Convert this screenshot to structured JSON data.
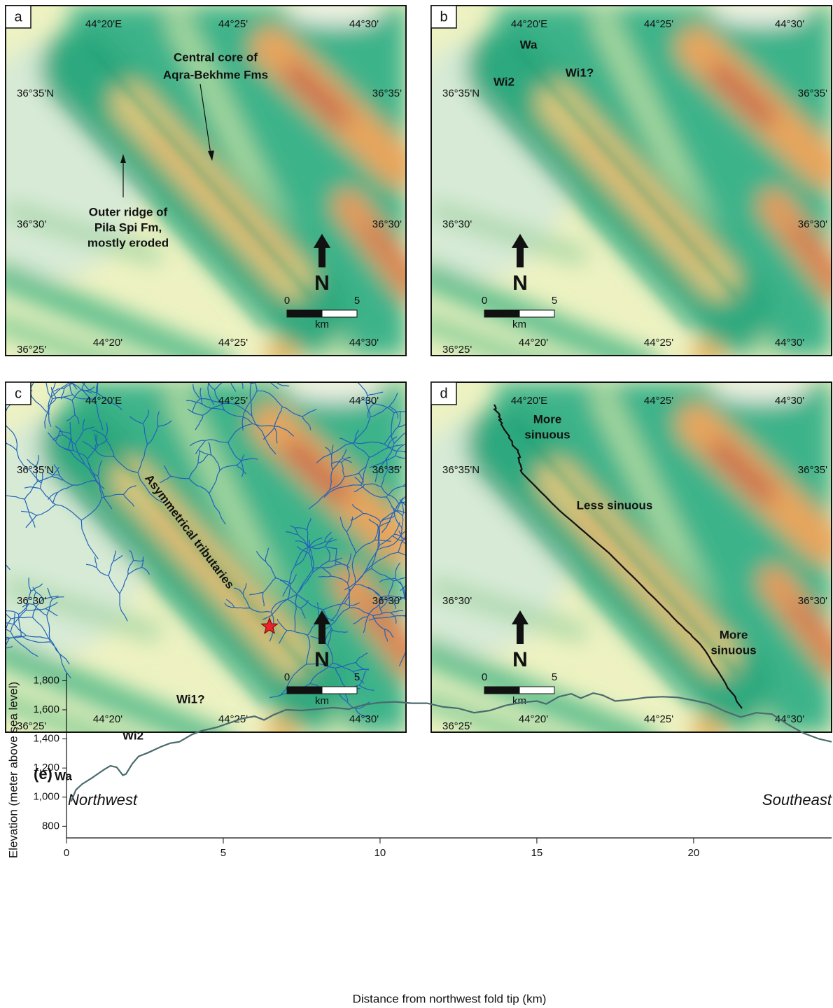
{
  "maps": [
    {
      "label": "a",
      "top_labels": [
        "44°20'E",
        "44°25'",
        "44°30'"
      ],
      "left_labels": [
        "36°35'N",
        "36°30'"
      ],
      "right_labels": [
        "36°35'",
        "36°30'"
      ],
      "bottom_labels": [
        "44°20'",
        "44°25'",
        "44°30'"
      ],
      "corner_label": "36°25'",
      "north": "N",
      "scale": {
        "start": "0",
        "end": "5",
        "unit": "km"
      },
      "annotations": [
        [
          "Central core of",
          "Aqra-Bekhme Fms"
        ],
        [
          "Outer ridge of",
          "Pila Spi Fm,",
          "mostly eroded"
        ]
      ]
    },
    {
      "label": "b",
      "top_labels": [
        "44°20'E",
        "44°25'",
        "44°30'"
      ],
      "left_labels": [
        "36°35'N",
        "36°30'"
      ],
      "right_labels": [
        "36°35'",
        "36°30'"
      ],
      "bottom_labels": [
        "44°20'",
        "44°25'",
        "44°30'"
      ],
      "corner_label": "36°25'",
      "north": "N",
      "scale": {
        "start": "0",
        "end": "5",
        "unit": "km"
      },
      "annotations": [
        [
          "Wa"
        ],
        [
          "Wi2"
        ],
        [
          "Wi1?"
        ]
      ]
    },
    {
      "label": "c",
      "top_labels": [
        "44°20'E",
        "44°25'",
        "44°30'"
      ],
      "left_labels": [
        "36°35'N",
        "36°30'"
      ],
      "right_labels": [
        "36°35'",
        "36°30'"
      ],
      "bottom_labels": [
        "44°20'",
        "44°25'",
        "44°30'"
      ],
      "corner_label": "36°25'",
      "north": "N",
      "scale": {
        "start": "0",
        "end": "5",
        "unit": "km"
      },
      "annotations": [
        [
          "Asymmetrical tributaries"
        ]
      ]
    },
    {
      "label": "d",
      "top_labels": [
        "44°20'E",
        "44°25'",
        "44°30'"
      ],
      "left_labels": [
        "36°35'N",
        "36°30'"
      ],
      "right_labels": [
        "36°35'",
        "36°30'"
      ],
      "bottom_labels": [
        "44°20'",
        "44°25'",
        "44°30'"
      ],
      "corner_label": "36°25'",
      "north": "N",
      "scale": {
        "start": "0",
        "end": "5",
        "unit": "km"
      },
      "annotations": [
        [
          "More",
          "sinuous"
        ],
        [
          "Less sinuous"
        ],
        [
          "More",
          "sinuous"
        ]
      ]
    }
  ],
  "chart_data": {
    "type": "line",
    "title": "(e)",
    "left_note": "Northwest",
    "right_note": "Southeast",
    "y_label": "Elevation (meter above sea level)",
    "x_label": "Distance from northwest fold tip (km)",
    "annotations": [
      "Wa",
      "Wi2",
      "Wi1?"
    ],
    "color": "#4a6b6e",
    "x": [
      0.15,
      0.3,
      0.5,
      0.8,
      1.0,
      1.2,
      1.4,
      1.6,
      1.8,
      1.9,
      2.1,
      2.3,
      2.6,
      3.0,
      3.3,
      3.6,
      4.0,
      4.3,
      4.8,
      5.2,
      5.6,
      6.0,
      6.3,
      6.6,
      7.0,
      7.5,
      8.0,
      8.5,
      9.0,
      9.5,
      10.0,
      10.5,
      11.0,
      11.5,
      12.0,
      12.5,
      13.0,
      13.5,
      14.0,
      14.5,
      15.0,
      15.3,
      15.7,
      16.1,
      16.4,
      16.8,
      17.1,
      17.5,
      18.0,
      18.5,
      19.0,
      19.5,
      20.0,
      20.5,
      21.0,
      21.5,
      22.0,
      22.5,
      23.0,
      23.5,
      24.0,
      24.4
    ],
    "values": [
      970,
      1050,
      1090,
      1130,
      1160,
      1190,
      1215,
      1205,
      1150,
      1160,
      1230,
      1280,
      1305,
      1345,
      1370,
      1380,
      1430,
      1455,
      1480,
      1510,
      1540,
      1555,
      1530,
      1565,
      1600,
      1595,
      1605,
      1615,
      1605,
      1635,
      1650,
      1655,
      1645,
      1645,
      1620,
      1610,
      1580,
      1595,
      1630,
      1650,
      1660,
      1640,
      1690,
      1710,
      1680,
      1715,
      1700,
      1660,
      1670,
      1685,
      1690,
      1685,
      1665,
      1640,
      1590,
      1550,
      1580,
      1570,
      1500,
      1440,
      1400,
      1380
    ],
    "xlim": [
      0,
      24.4
    ],
    "ylim": [
      720,
      1850
    ],
    "xticks": [
      0,
      5,
      10,
      15,
      20
    ],
    "yticks": [
      800,
      {
        "value": 1000,
        "label": "1,000"
      },
      {
        "value": 1200,
        "label": "1,200"
      },
      {
        "value": 1400,
        "label": "1,400"
      },
      {
        "value": 1600,
        "label": "1,600"
      },
      {
        "value": 1800,
        "label": "1,800"
      }
    ]
  }
}
